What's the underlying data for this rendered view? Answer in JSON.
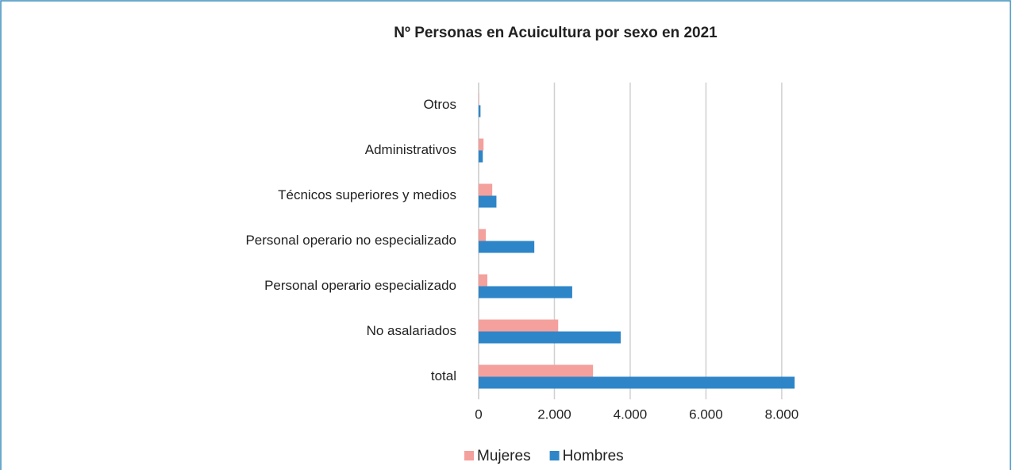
{
  "chart_data": {
    "type": "hbar",
    "title": "Nº Personas en Acuicultura por sexo en 2021",
    "categories": [
      "Otros",
      "Administrativos",
      "Técnicos superiores y medios",
      "Personal operario no especializado",
      "Personal operario especializado",
      "No asalariados",
      "total"
    ],
    "series": [
      {
        "name": "Mujeres",
        "color": "#f4a09c",
        "values": [
          10,
          130,
          360,
          190,
          230,
          2100,
          3020
        ]
      },
      {
        "name": "Hombres",
        "color": "#2e86c8",
        "values": [
          50,
          110,
          470,
          1470,
          2470,
          3750,
          8340
        ]
      }
    ],
    "xlim": [
      0,
      8400
    ],
    "xticks": [
      0,
      {
        "value": 2000,
        "label": "2.000"
      },
      {
        "value": 4000,
        "label": "4.000"
      },
      {
        "value": 6000,
        "label": "6.000"
      },
      {
        "value": 8000,
        "label": "8.000"
      }
    ],
    "grid": true,
    "legend": "bottom"
  }
}
